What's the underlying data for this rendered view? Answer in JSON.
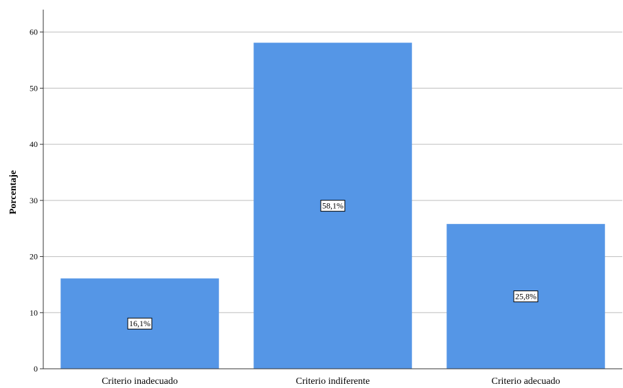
{
  "chart_data": {
    "type": "bar",
    "title": "",
    "xlabel": "",
    "ylabel": "Porcentaje",
    "categories": [
      "Criterio inadecuado",
      "Criterio indiferente",
      "Criterio adecuado"
    ],
    "values": [
      16.1,
      58.1,
      25.8
    ],
    "data_labels": [
      "16,1%",
      "58,1%",
      "25,8%"
    ],
    "ylim": [
      0,
      64
    ],
    "yticks": [
      0,
      10,
      20,
      30,
      40,
      50,
      60
    ],
    "grid": true,
    "legend": "none",
    "colors": {
      "bar": "#5596e6",
      "grid": "#bdbdbd",
      "axis": "#333333"
    }
  }
}
